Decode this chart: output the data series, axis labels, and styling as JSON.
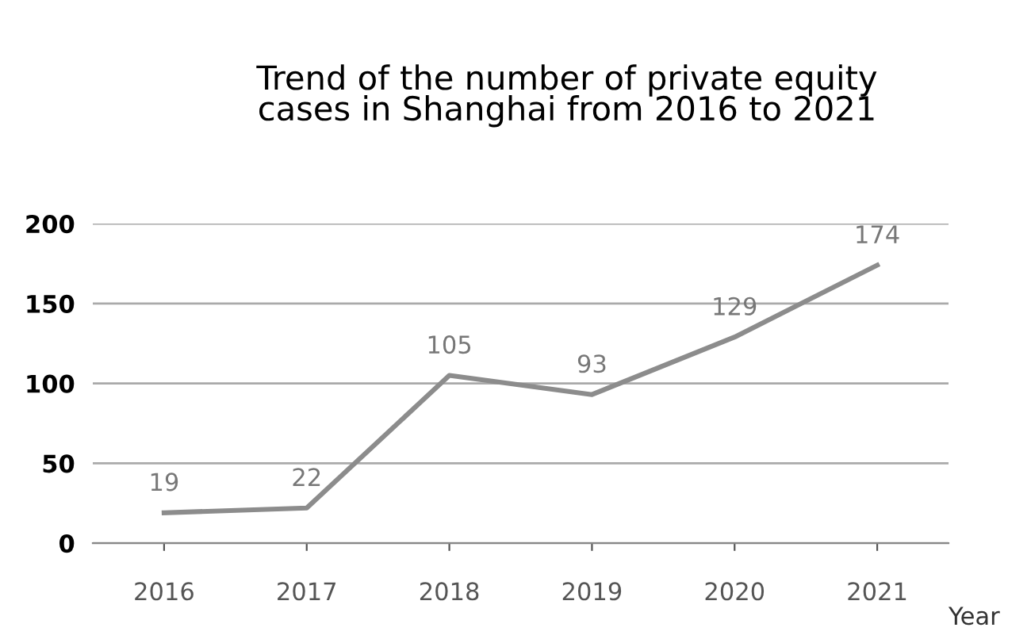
{
  "chart_data": {
    "type": "line",
    "title": "Trend of the number of private equity\ncases in Shanghai from 2016 to 2021",
    "xlabel": "Year",
    "categories": [
      "2016",
      "2017",
      "2018",
      "2019",
      "2020",
      "2021"
    ],
    "series": [
      {
        "color": "#8c8c8c",
        "values": [
          19,
          22,
          105,
          93,
          129,
          174
        ]
      }
    ],
    "ylim": [
      0,
      200
    ],
    "yticks": [
      0,
      50,
      100,
      150,
      200
    ],
    "grid": "y",
    "data_labels": true,
    "marker": "none",
    "line_style": "solid"
  }
}
